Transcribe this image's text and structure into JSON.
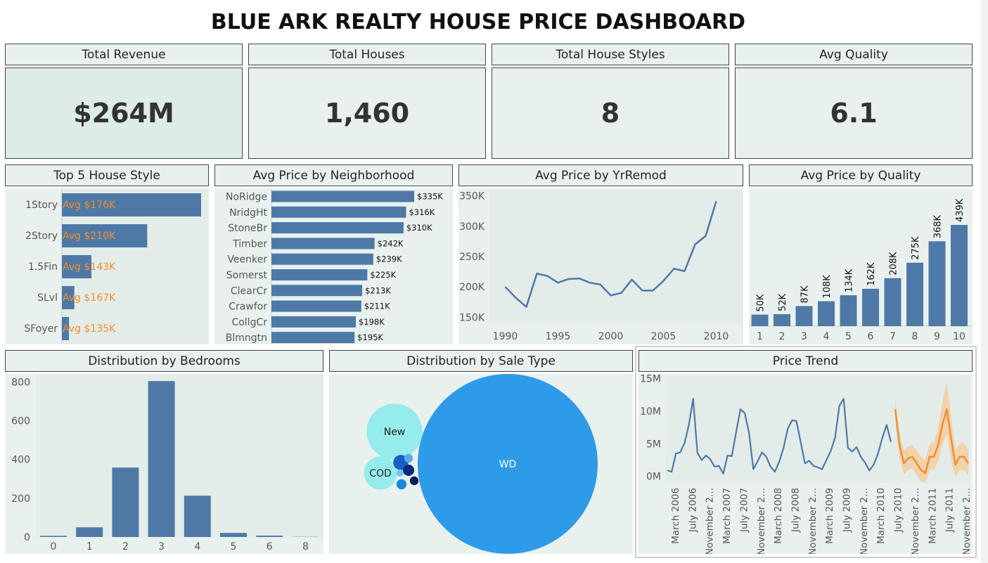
{
  "title": "BLUE ARK REALTY HOUSE PRICE DASHBOARD",
  "kpis": [
    {
      "header": "Total Revenue",
      "value": "$264M"
    },
    {
      "header": "Total Houses",
      "value": "1,460"
    },
    {
      "header": "Total House Styles",
      "value": "8"
    },
    {
      "header": "Avg Quality",
      "value": "6.1"
    }
  ],
  "headers": {
    "house_style": "Top 5 House Style",
    "neighborhood": "Avg Price by Neighborhood",
    "yrremod": "Avg Price by YrRemod",
    "quality": "Avg Price by Quality",
    "bedrooms": "Distribution by Bedrooms",
    "saletype": "Distribution by Sale Type",
    "trend": "Price Trend"
  },
  "colors": {
    "bar": "#4e79a7",
    "accent": "#f28e2b",
    "panel": "#e9f1ef",
    "bubble_wd": "#2e9be9",
    "bubble_light": "#96ecec"
  },
  "chart_data": [
    {
      "id": "house_style",
      "type": "bar",
      "orientation": "horizontal",
      "categories": [
        "1Story",
        "2Story",
        "1.5Fin",
        "SLvl",
        "SFoyer"
      ],
      "labels": [
        "Avg $176K",
        "Avg $210K",
        "Avg $143K",
        "Avg $167K",
        "Avg $135K"
      ],
      "values": [
        726,
        445,
        154,
        65,
        37
      ]
    },
    {
      "id": "neighborhood",
      "type": "bar",
      "orientation": "horizontal",
      "categories": [
        "NoRidge",
        "NridgHt",
        "StoneBr",
        "Timber",
        "Veenker",
        "Somerst",
        "ClearCr",
        "Crawfor",
        "CollgCr",
        "Blmngtn"
      ],
      "values": [
        335,
        316,
        310,
        242,
        239,
        225,
        213,
        211,
        198,
        195
      ],
      "labels": [
        "$335K",
        "$316K",
        "$310K",
        "$242K",
        "$239K",
        "$225K",
        "$213K",
        "$211K",
        "$198K",
        "$195K"
      ]
    },
    {
      "id": "yrremod",
      "type": "line",
      "x": [
        1990,
        1991,
        1992,
        1993,
        1994,
        1995,
        1996,
        1997,
        1998,
        1999,
        2000,
        2001,
        2002,
        2003,
        2004,
        2005,
        2006,
        2007,
        2008,
        2009,
        2010
      ],
      "values": [
        200,
        182,
        167,
        222,
        218,
        207,
        213,
        214,
        207,
        204,
        186,
        190,
        212,
        194,
        194,
        210,
        230,
        226,
        270,
        284,
        341
      ],
      "yticks": [
        "350K",
        "300K",
        "250K",
        "200K",
        "150K"
      ],
      "ytick_values": [
        350,
        300,
        250,
        200,
        150
      ],
      "xticks": [
        "1990",
        "1995",
        "2000",
        "2005",
        "2010"
      ],
      "ylim": [
        140,
        360
      ]
    },
    {
      "id": "quality",
      "type": "bar",
      "categories": [
        "1",
        "2",
        "3",
        "4",
        "5",
        "6",
        "7",
        "8",
        "9",
        "10"
      ],
      "values": [
        50,
        52,
        87,
        108,
        134,
        162,
        208,
        275,
        368,
        439
      ],
      "labels": [
        "50K",
        "52K",
        "87K",
        "108K",
        "134K",
        "162K",
        "208K",
        "275K",
        "368K",
        "439K"
      ]
    },
    {
      "id": "bedrooms",
      "type": "bar",
      "categories": [
        "0",
        "1",
        "2",
        "3",
        "4",
        "5",
        "6",
        "8"
      ],
      "values": [
        6,
        50,
        358,
        804,
        213,
        21,
        7,
        1
      ],
      "yticks": [
        "800",
        "600",
        "400",
        "200",
        "0"
      ],
      "ytick_values": [
        800,
        600,
        400,
        200,
        0
      ],
      "ylim": [
        0,
        830
      ]
    },
    {
      "id": "saletype",
      "type": "bubble",
      "items": [
        {
          "label": "WD",
          "value": 1267
        },
        {
          "label": "New",
          "value": 122
        },
        {
          "label": "COD",
          "value": 43
        },
        {
          "label": "",
          "value": 9
        },
        {
          "label": "",
          "value": 5
        },
        {
          "label": "",
          "value": 4
        },
        {
          "label": "",
          "value": 3
        },
        {
          "label": "",
          "value": 3
        },
        {
          "label": "",
          "value": 2
        }
      ]
    },
    {
      "id": "trend",
      "type": "line",
      "yticks": [
        "15M",
        "10M",
        "5M",
        "0M"
      ],
      "ytick_values": [
        15,
        10,
        5,
        0
      ],
      "ylim": [
        -1,
        15.5
      ],
      "xticks": [
        "March 2006",
        "July 2006",
        "November 2...",
        "March 2007",
        "July 2007",
        "November 2...",
        "March 2008",
        "July 2008",
        "November 2...",
        "March 2009",
        "July 2009",
        "November 2...",
        "March 2010",
        "July 2010",
        "November 2...",
        "March 2011",
        "July 2011",
        "November 2..."
      ],
      "actual": [
        0.9,
        0.7,
        3.5,
        3.7,
        5.1,
        7.9,
        11.9,
        3.6,
        2.5,
        3.2,
        2.6,
        1.5,
        1.6,
        0.4,
        3.2,
        3.1,
        6.8,
        10.3,
        9.7,
        6.7,
        1.1,
        2.3,
        3.7,
        3.0,
        1.5,
        0.7,
        2.2,
        4.3,
        7.3,
        8.6,
        8.5,
        5.3,
        2.0,
        2.4,
        1.6,
        1.4,
        1.1,
        2.5,
        3.9,
        5.9,
        10.8,
        11.9,
        4.4,
        3.8,
        4.5,
        3.0,
        2.1,
        0.9,
        1.8,
        3.5,
        5.9,
        7.9,
        5.3
      ],
      "forecast": [
        10.3,
        4.8,
        2.0,
        2.8,
        3.0,
        2.0,
        1.0,
        0.5,
        3.0,
        3.0,
        4.8,
        8.0,
        10.3,
        5.8,
        1.8,
        3.0,
        3.0,
        2.0
      ],
      "forecast_upper": [
        11.8,
        6.5,
        4.0,
        4.6,
        4.8,
        4.0,
        3.0,
        2.5,
        5.0,
        5.2,
        7.4,
        11.5,
        14.5,
        9.3,
        4.0,
        5.0,
        5.1,
        4.0
      ],
      "forecast_lower": [
        8.8,
        3.0,
        0.3,
        1.0,
        1.2,
        0.2,
        -0.8,
        -1.0,
        1.0,
        1.0,
        2.3,
        4.8,
        6.5,
        2.5,
        -0.2,
        1.0,
        1.0,
        0.2
      ]
    }
  ]
}
